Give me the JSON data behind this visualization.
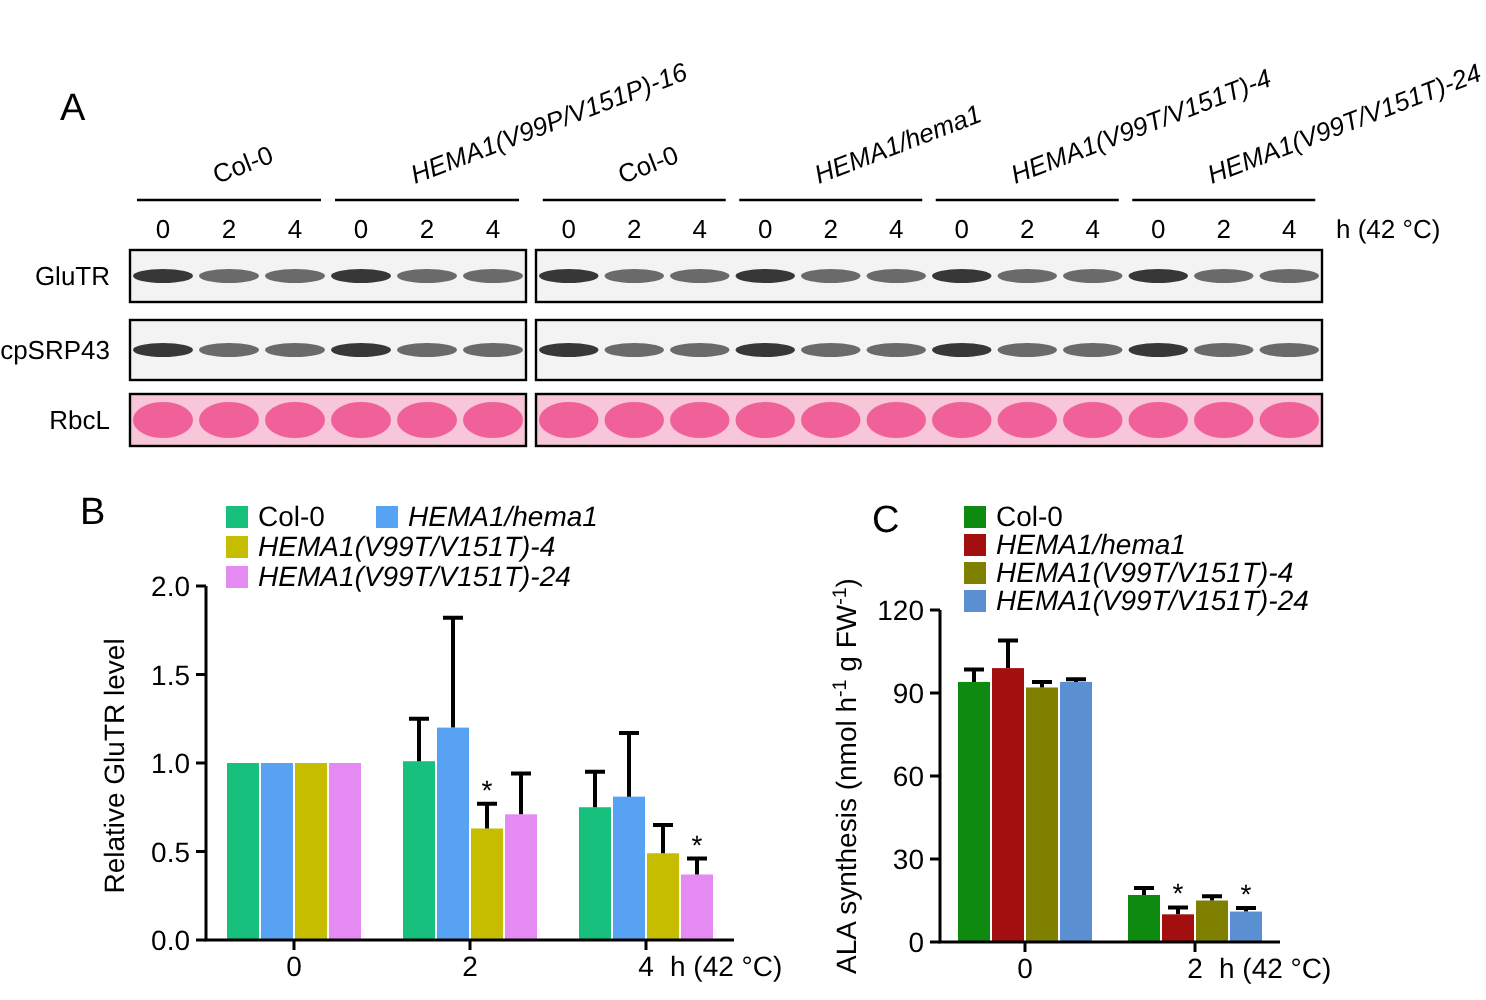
{
  "chart_data": [
    {
      "type": "other",
      "title": "A",
      "categories": [
        "0",
        "2",
        "4",
        "0",
        "2",
        "4",
        "0",
        "2",
        "4",
        "0",
        "2",
        "4",
        "0",
        "2",
        "4",
        "0",
        "2",
        "4"
      ],
      "y_categories": [
        "GluTR",
        "cpSRP43",
        "RbcL"
      ],
      "xlabel": "h (42 °C)",
      "annotations": [
        "Col-0",
        "HEMA1(V99P/V151P)-16",
        "Col-0",
        "HEMA1/hema1",
        "HEMA1(V99T/V151T)-4",
        "HEMA1(V99T/V151T)-24"
      ]
    },
    {
      "type": "bar",
      "title": "B",
      "categories": [
        "0",
        "2",
        "4"
      ],
      "xlabel": "h (42 °C)",
      "ylabel": "Relative GluTR level",
      "ylim": [
        0,
        2
      ],
      "yticks": [
        {
          "value": 0,
          "label": "0.0"
        },
        {
          "value": 0.5,
          "label": "0.5"
        },
        {
          "value": 1,
          "label": "1.0"
        },
        {
          "value": 1.5,
          "label": "1.5"
        },
        {
          "value": 2,
          "label": "2.0"
        }
      ],
      "legend": "top",
      "series": [
        {
          "name": "Col-0",
          "color": "#17c07c",
          "values": [
            1,
            1.01,
            0.75
          ],
          "errors": [
            null,
            [
              1.01,
              1.25
            ],
            [
              0.75,
              0.95
            ]
          ]
        },
        {
          "name": "HEMA1/hema1",
          "color": "#58a2f4",
          "values": [
            1,
            1.2,
            0.81
          ],
          "errors": [
            null,
            [
              1.2,
              1.82
            ],
            [
              0.81,
              1.17
            ]
          ]
        },
        {
          "name": "HEMA1(V99T/V151T)-4",
          "color": "#c6bd00",
          "values": [
            1,
            0.63,
            0.49
          ],
          "errors": [
            null,
            [
              0.63,
              0.77
            ],
            [
              0.49,
              0.65
            ]
          ]
        },
        {
          "name": "HEMA1(V99T/V151T)-24",
          "color": "#e48af2",
          "values": [
            1,
            0.71,
            0.37
          ],
          "errors": [
            null,
            [
              0.71,
              0.94
            ],
            [
              0.37,
              0.46
            ]
          ]
        }
      ],
      "annotations": [
        {
          "text": "*",
          "x": "2",
          "y": 0.77
        },
        {
          "text": "*",
          "x": "4",
          "y": 0.46
        }
      ]
    },
    {
      "type": "bar",
      "title": "C",
      "categories": [
        "0",
        "2"
      ],
      "xlabel": "h (42 °C)",
      "ylabel": "ALA synthesis (nmol h$^{-1}$ g FW$^{-1}$)",
      "ylim": [
        0,
        120
      ],
      "yticks": [
        0,
        30,
        60,
        90,
        120
      ],
      "legend": "top",
      "series": [
        {
          "name": "Col-0",
          "color": "#0f8a10",
          "values": [
            94,
            17
          ],
          "errors": [
            [
              94,
              98.5
            ],
            [
              17,
              19.5
            ]
          ]
        },
        {
          "name": "HEMA1/hema1",
          "color": "#a30e0e",
          "values": [
            99,
            10
          ],
          "errors": [
            [
              99,
              109
            ],
            [
              10,
              12.5
            ]
          ]
        },
        {
          "name": "HEMA1(V99T/V151T)-4",
          "color": "#808000",
          "values": [
            92,
            15
          ],
          "errors": [
            [
              92,
              94
            ],
            [
              15,
              16.5
            ]
          ]
        },
        {
          "name": "HEMA1(V99T/V151T)-24",
          "color": "#5a8fd2",
          "values": [
            94,
            11
          ],
          "errors": [
            [
              94,
              95
            ],
            [
              11,
              12.3
            ]
          ]
        }
      ],
      "annotations": [
        {
          "text": "*",
          "x": "2",
          "y": 12.5
        },
        {
          "text": "*",
          "x": "2",
          "y": 12.3
        }
      ]
    }
  ]
}
